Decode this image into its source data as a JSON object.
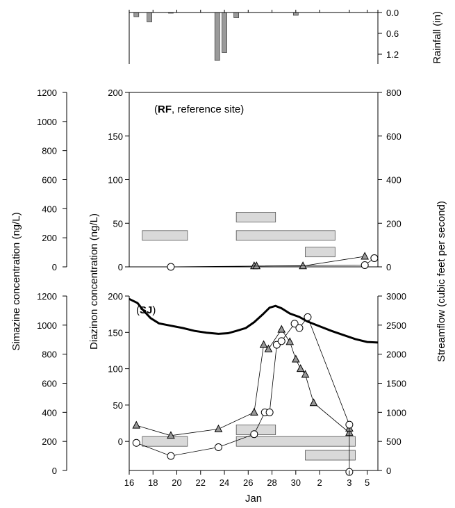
{
  "chart_data": [
    {
      "type": "bar",
      "panel": "rainfall",
      "ylabel": "Rainfall (in)",
      "ylim": [
        0,
        1.4
      ],
      "y_inverted": true,
      "yticks": [
        "0.0",
        "0.6",
        "1.2"
      ],
      "x": [
        16.6,
        17.7,
        19.5,
        23.4,
        24.0,
        25.0,
        30.0
      ],
      "values": [
        0.12,
        0.27,
        0.02,
        1.38,
        1.15,
        0.15,
        0.08
      ]
    },
    {
      "type": "line",
      "panel": "RF",
      "annotation": "(RF, reference site)",
      "annotation_bold": "RF",
      "annotation_rest": ", reference site)",
      "y_left_outer": {
        "label": "Simazine concentration (ng/L)",
        "ticks": [
          "0",
          "200",
          "400",
          "600",
          "800",
          "1000",
          "1200"
        ]
      },
      "y_left_inner": {
        "label": "Diazinon concentration (ng/L)",
        "ticks": [
          "0",
          "50",
          "100",
          "150",
          "200"
        ],
        "range": [
          0,
          200
        ]
      },
      "y_right": {
        "label": "Streamflow (cubic feet per second)",
        "ticks": [
          "0",
          "200",
          "400",
          "600",
          "800"
        ]
      },
      "series": [
        {
          "marker": "triangle",
          "x": [
            26.5,
            26.7,
            30.6,
            35.8
          ],
          "y": [
            1,
            1,
            1,
            12
          ]
        },
        {
          "marker": "circle",
          "x": [
            19.5,
            35.8,
            36.6
          ],
          "y": [
            0,
            2,
            10
          ]
        }
      ],
      "shaded_bars": [
        {
          "x0": 17.1,
          "x1": 20.9,
          "y": 36
        },
        {
          "x0": 25.0,
          "x1": 28.3,
          "y": 57
        },
        {
          "x0": 25.0,
          "x1": 33.3,
          "y": 36
        },
        {
          "x0": 30.8,
          "x1": 33.3,
          "y": 17
        }
      ]
    },
    {
      "type": "line",
      "panel": "SJ",
      "annotation": "(SJ)",
      "annotation_bold": "SJ",
      "annotation_rest": ")",
      "y_left_outer": {
        "label": "Simazine concentration (ng/L)",
        "ticks": [
          "0",
          "200",
          "400",
          "600",
          "800",
          "1000",
          "1200"
        ]
      },
      "y_left_inner": {
        "label": "Diazinon concentration (ng/L)",
        "ticks": [
          "0",
          "50",
          "100",
          "150",
          "200"
        ],
        "range": [
          -40,
          200
        ]
      },
      "y_right": {
        "label": "Streamflow (cubic feet per second)",
        "ticks": [
          "0",
          "500",
          "1000",
          "1500",
          "2000",
          "2500",
          "3000"
        ],
        "range": [
          0,
          3000
        ]
      },
      "streamflow": {
        "x": [
          16,
          16.7,
          17.2,
          17.8,
          18.5,
          19.5,
          20.5,
          21.5,
          22.5,
          23.5,
          24.3,
          25.0,
          25.8,
          26.5,
          27.2,
          27.8,
          28.3,
          28.8,
          29.5,
          30.3,
          31.0,
          32.0,
          33.0,
          34.0,
          35.0,
          36.0,
          36.9
        ],
        "y": [
          2950,
          2880,
          2750,
          2620,
          2530,
          2490,
          2450,
          2400,
          2370,
          2350,
          2360,
          2400,
          2450,
          2550,
          2680,
          2800,
          2830,
          2790,
          2700,
          2640,
          2560,
          2480,
          2400,
          2330,
          2260,
          2210,
          2200
        ]
      },
      "series": [
        {
          "marker": "triangle",
          "x": [
            16.6,
            19.5,
            23.5,
            26.5,
            27.3,
            27.7,
            28.8,
            29.5,
            30.0,
            30.4,
            30.8,
            31.5,
            34.5,
            34.5
          ],
          "y": [
            22,
            8,
            17,
            40,
            133,
            127,
            154,
            137,
            113,
            100,
            92,
            53,
            12,
            18
          ]
        },
        {
          "marker": "circle",
          "x": [
            16.6,
            19.5,
            23.5,
            26.5,
            27.4,
            27.8,
            28.4,
            28.8,
            29.9,
            30.3,
            31.0,
            34.5,
            34.5
          ],
          "y": [
            -2,
            -20,
            -8,
            10,
            40,
            40,
            133,
            138,
            162,
            156,
            171,
            23,
            -42
          ]
        }
      ],
      "shaded_bars": [
        {
          "x0": 17.1,
          "x1": 20.9,
          "y": 0
        },
        {
          "x0": 25.0,
          "x1": 28.3,
          "y": 16
        },
        {
          "x0": 25.0,
          "x1": 35.0,
          "y": 0
        },
        {
          "x0": 30.8,
          "x1": 35.0,
          "y": -19
        }
      ],
      "x_ticks": [
        "16",
        "18",
        "20",
        "22",
        "24",
        "26",
        "28",
        "30",
        "2",
        "3",
        "5"
      ],
      "x_tick_positions": [
        16,
        18,
        20,
        22,
        24,
        26,
        28,
        30,
        32,
        34.5,
        36
      ],
      "xlabel": "Jan"
    }
  ]
}
